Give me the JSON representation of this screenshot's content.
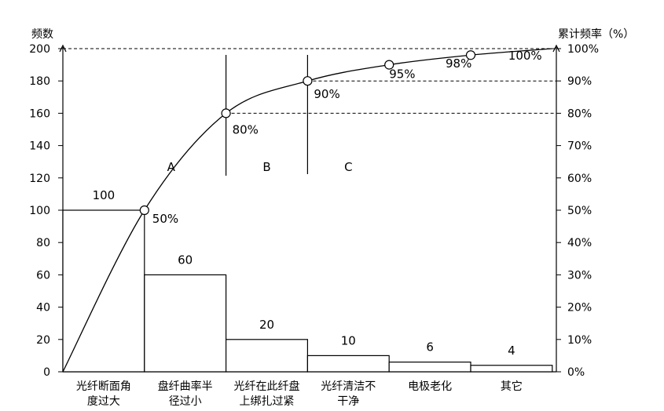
{
  "chart_data": {
    "type": "bar",
    "ylabel": "频数",
    "y2label": "累计频率（%）",
    "ylim": [
      0,
      200
    ],
    "y2lim": [
      0,
      100
    ],
    "yticks": [
      0,
      20,
      40,
      60,
      80,
      100,
      120,
      140,
      160,
      180,
      200
    ],
    "y2ticks": [
      "0%",
      "10%",
      "20%",
      "30%",
      "40%",
      "50%",
      "60%",
      "70%",
      "80%",
      "90%",
      "100%"
    ],
    "categories": [
      [
        "光纤断面角",
        "度过大"
      ],
      [
        "盘纤曲率半",
        "径过小"
      ],
      [
        "光纤在此纤盘",
        "上绑扎过紧"
      ],
      [
        "光纤清洁不",
        "干净"
      ],
      [
        "电极老化"
      ],
      [
        "其它"
      ]
    ],
    "values": [
      100,
      60,
      20,
      10,
      6,
      4
    ],
    "value_labels": [
      "100",
      "60",
      "20",
      "10",
      "6",
      "4"
    ],
    "cumulative": {
      "values": [
        50,
        80,
        90,
        95,
        98,
        100
      ],
      "labels": [
        "50%",
        "80%",
        "90%",
        "95%",
        "98%",
        "100%"
      ]
    },
    "zones": [
      "A",
      "B",
      "C"
    ]
  }
}
